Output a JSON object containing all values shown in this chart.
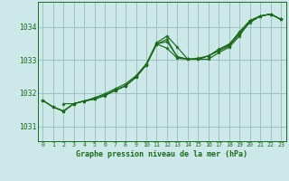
{
  "title": "Graphe pression niveau de la mer (hPa)",
  "bg_color": "#cce8e8",
  "grid_color": "#99bbbb",
  "line_color": "#1a6b1a",
  "xlim": [
    -0.5,
    23.5
  ],
  "ylim": [
    1030.55,
    1034.75
  ],
  "yticks": [
    1031,
    1032,
    1033,
    1034
  ],
  "xticks": [
    0,
    1,
    2,
    3,
    4,
    5,
    6,
    7,
    8,
    9,
    10,
    11,
    12,
    13,
    14,
    15,
    16,
    17,
    18,
    19,
    20,
    21,
    22,
    23
  ],
  "line1_x": [
    0,
    1,
    2,
    3,
    4,
    5,
    6,
    7,
    8,
    9,
    10,
    11,
    12,
    13,
    14,
    15,
    16,
    17,
    18,
    19,
    20,
    21,
    22,
    23
  ],
  "line1_y": [
    1031.78,
    1031.58,
    1031.45,
    1031.68,
    1031.76,
    1031.86,
    1031.98,
    1032.13,
    1032.28,
    1032.52,
    1032.88,
    1033.52,
    1033.72,
    1033.38,
    1033.02,
    1033.02,
    1033.02,
    1033.22,
    1033.38,
    1033.72,
    1034.18,
    1034.32,
    1034.38,
    1034.22
  ],
  "line2_x": [
    0,
    1,
    2,
    3,
    4,
    5,
    6,
    7,
    8,
    9,
    10,
    11,
    12,
    13,
    14,
    15,
    16,
    17,
    18,
    19,
    20,
    21,
    22,
    23
  ],
  "line2_y": [
    1031.78,
    1031.58,
    1031.46,
    1031.68,
    1031.76,
    1031.82,
    1031.94,
    1032.08,
    1032.22,
    1032.48,
    1032.85,
    1033.48,
    1033.55,
    1033.1,
    1033.02,
    1033.02,
    1033.12,
    1033.28,
    1033.45,
    1033.85,
    1034.18,
    1034.32,
    1034.38,
    1034.22
  ],
  "line3_x": [
    2,
    3,
    4,
    5,
    6,
    7,
    8,
    9,
    10,
    11,
    12,
    13,
    14,
    15,
    16,
    17,
    18,
    19,
    20,
    21,
    22,
    23
  ],
  "line3_y": [
    1031.68,
    1031.68,
    1031.76,
    1031.82,
    1031.92,
    1032.08,
    1032.22,
    1032.48,
    1032.85,
    1033.48,
    1033.62,
    1033.08,
    1033.02,
    1033.02,
    1033.12,
    1033.28,
    1033.42,
    1033.78,
    1034.12,
    1034.32,
    1034.38,
    1034.22
  ],
  "line4_x": [
    0,
    1,
    2,
    3,
    4,
    5,
    6,
    7,
    8,
    9,
    10,
    11,
    12,
    13,
    14,
    15,
    16,
    17,
    18,
    19,
    20,
    21,
    22,
    23
  ],
  "line4_y": [
    1031.78,
    1031.58,
    1031.46,
    1031.68,
    1031.76,
    1031.82,
    1031.94,
    1032.08,
    1032.22,
    1032.48,
    1032.85,
    1033.48,
    1033.35,
    1033.05,
    1033.02,
    1033.05,
    1033.12,
    1033.32,
    1033.48,
    1033.82,
    1034.18,
    1034.32,
    1034.38,
    1034.22
  ]
}
